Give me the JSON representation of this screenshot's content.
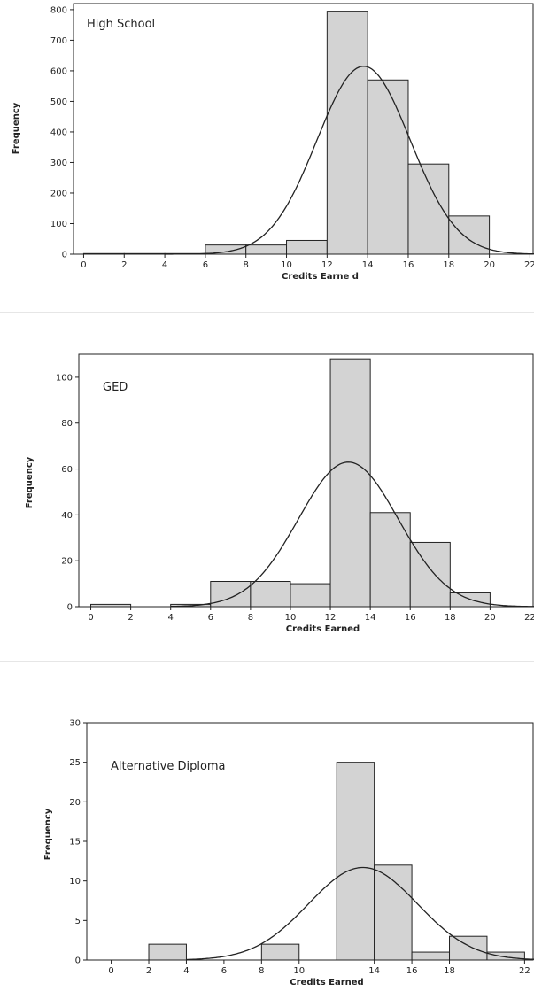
{
  "chart_data": [
    {
      "type": "bar",
      "title": "High  School",
      "xlabel": "Credits  Earne d",
      "ylabel": "Frequency",
      "xlim": [
        -0.5,
        22.2
      ],
      "ylim": [
        0,
        820
      ],
      "xticks": [
        0,
        2,
        4,
        6,
        8,
        10,
        12,
        14,
        16,
        18,
        20,
        22
      ],
      "yticks": [
        0,
        100,
        200,
        300,
        400,
        500,
        600,
        700,
        800
      ],
      "bins": [
        [
          0,
          2
        ],
        [
          2,
          4
        ],
        [
          4,
          6
        ],
        [
          6,
          8
        ],
        [
          8,
          10
        ],
        [
          10,
          12
        ],
        [
          12,
          14
        ],
        [
          14,
          16
        ],
        [
          16,
          18
        ],
        [
          18,
          20
        ]
      ],
      "values": [
        2,
        2,
        2,
        30,
        30,
        45,
        795,
        570,
        295,
        125
      ],
      "curve": {
        "type": "normal",
        "mean": 13.8,
        "sd": 2.3,
        "peak": 615
      },
      "bar_color": "#d3d3d3",
      "grid": false
    },
    {
      "type": "bar",
      "title": "GED",
      "xlabel": "Credits  Earned",
      "ylabel": "Frequency",
      "xlim": [
        -0.6,
        22.2
      ],
      "ylim": [
        0,
        110
      ],
      "xticks": [
        0,
        2,
        4,
        6,
        8,
        10,
        12,
        14,
        16,
        18,
        20,
        22
      ],
      "yticks": [
        0,
        20,
        40,
        60,
        80,
        100
      ],
      "bins": [
        [
          0,
          2
        ],
        [
          4,
          6
        ],
        [
          6,
          8
        ],
        [
          8,
          10
        ],
        [
          10,
          12
        ],
        [
          12,
          14
        ],
        [
          14,
          16
        ],
        [
          16,
          18
        ],
        [
          18,
          20
        ]
      ],
      "values": [
        1,
        1,
        11,
        11,
        10,
        108,
        41,
        28,
        6
      ],
      "curve": {
        "type": "normal",
        "mean": 12.9,
        "sd": 2.5,
        "peak": 63
      },
      "bar_color": "#d3d3d3",
      "grid": false
    },
    {
      "type": "bar",
      "title": "Alternative Diploma",
      "xlabel": "Credits  Earned",
      "ylabel": "Frequency",
      "xlim": [
        -1.3,
        22.5
      ],
      "ylim": [
        0,
        30
      ],
      "xticks": [
        0,
        2,
        4,
        6,
        8,
        10,
        14,
        16,
        18,
        22
      ],
      "yticks": [
        0,
        5,
        10,
        15,
        20,
        25,
        30
      ],
      "bins": [
        [
          2,
          4
        ],
        [
          8,
          10
        ],
        [
          12,
          14
        ],
        [
          14,
          16
        ],
        [
          16,
          18
        ],
        [
          18,
          20
        ],
        [
          20,
          22
        ]
      ],
      "values": [
        2,
        2,
        25,
        12,
        1,
        3,
        1
      ],
      "curve": {
        "type": "normal",
        "mean": 13.4,
        "sd": 2.9,
        "peak": 11.7
      },
      "bar_color": "#d3d3d3",
      "grid": false
    }
  ]
}
